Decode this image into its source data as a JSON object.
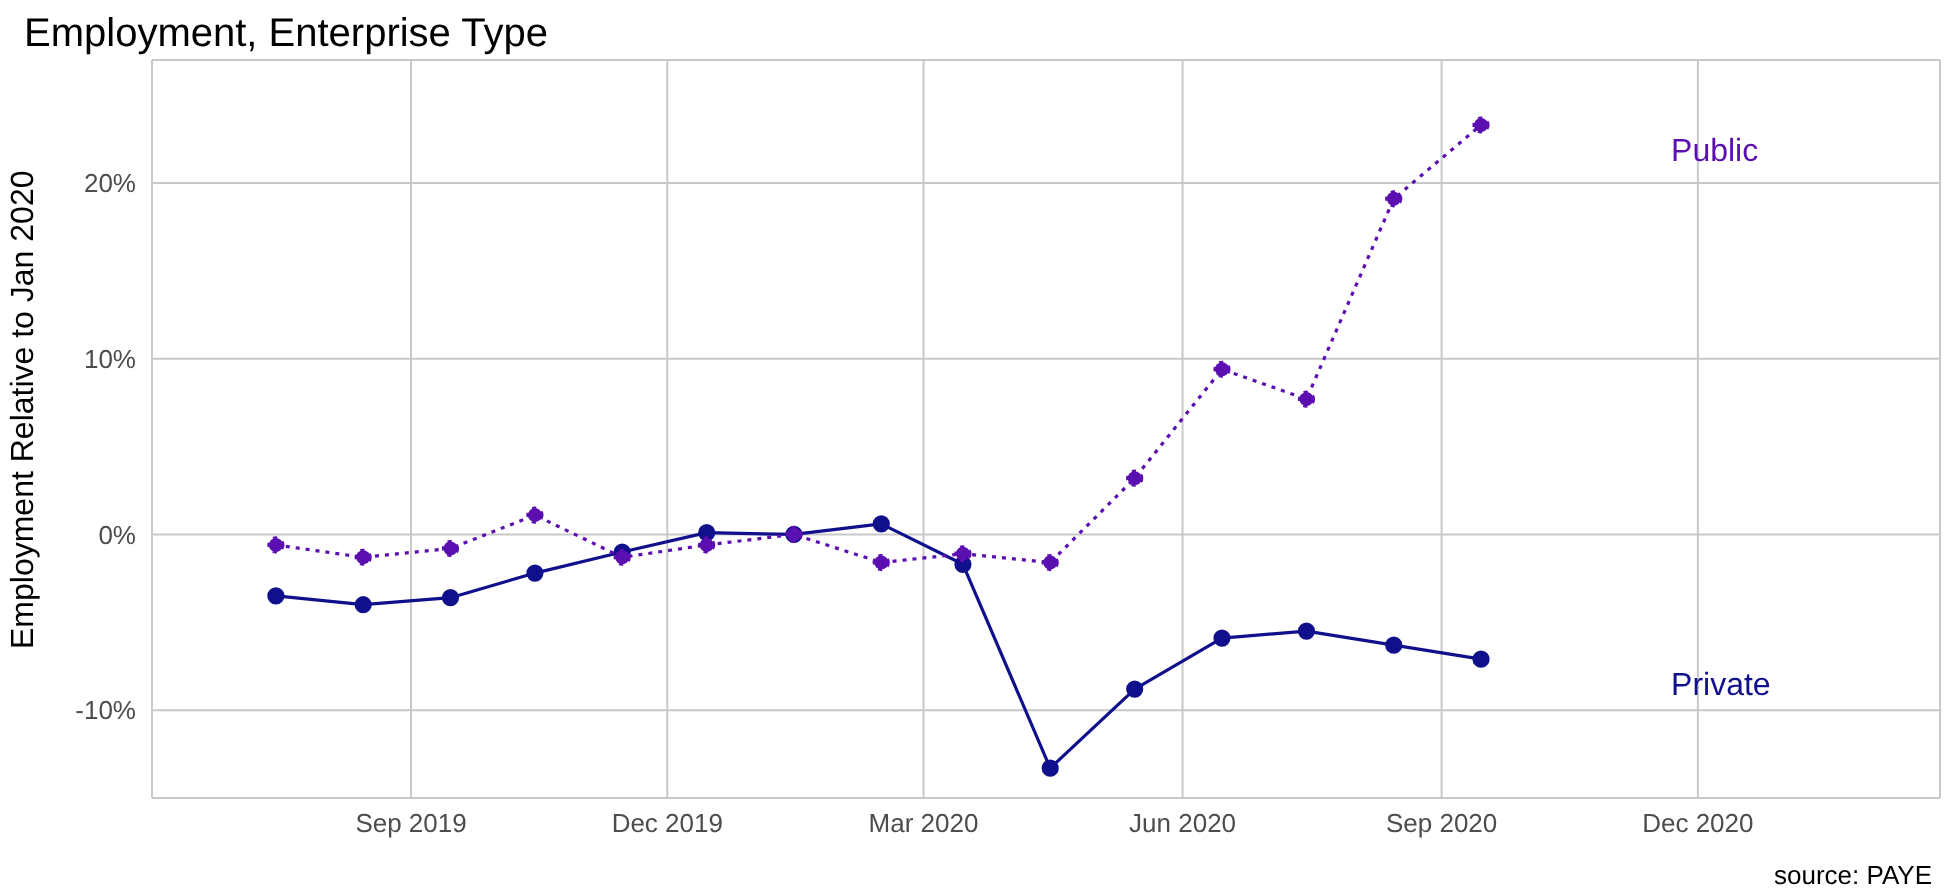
{
  "chart_data": {
    "type": "line",
    "title": "Employment, Enterprise Type",
    "ylabel": "Employment Relative to Jan 2020",
    "annotations": [
      "source: PAYE"
    ],
    "x": [
      "2019-07-15",
      "2019-08-15",
      "2019-09-15",
      "2019-10-15",
      "2019-11-15",
      "2019-12-15",
      "2020-01-15",
      "2020-02-15",
      "2020-03-15",
      "2020-04-15",
      "2020-05-15",
      "2020-06-15",
      "2020-07-15",
      "2020-08-15",
      "2020-09-15"
    ],
    "series": [
      {
        "name": "Public",
        "color": "#5b0fb0",
        "line_style": "dotted",
        "values": [
          -0.6,
          -1.3,
          -0.8,
          1.1,
          -1.3,
          -0.6,
          0,
          -1.6,
          -1.1,
          -1.6,
          3.2,
          9.4,
          7.7,
          19.1,
          23.3
        ]
      },
      {
        "name": "Private",
        "color": "#10108c",
        "line_style": "solid",
        "values": [
          -3.5,
          -4.0,
          -3.6,
          -2.2,
          -1.0,
          0.1,
          0.0,
          0.6,
          -1.7,
          -13.3,
          -8.8,
          -5.9,
          -5.5,
          -6.3,
          -7.1
        ]
      }
    ],
    "xlim": [
      "2019-06-01",
      "2021-02-25"
    ],
    "xticks": [
      {
        "value": "2019-09-01",
        "label": "Sep 2019"
      },
      {
        "value": "2019-12-01",
        "label": "Dec 2019"
      },
      {
        "value": "2020-03-01",
        "label": "Mar 2020"
      },
      {
        "value": "2020-06-01",
        "label": "Jun 2020"
      },
      {
        "value": "2020-09-01",
        "label": "Sep 2020"
      },
      {
        "value": "2020-12-01",
        "label": "Dec 2020"
      }
    ],
    "ylim": [
      -15,
      27
    ],
    "yticks": [
      {
        "value": -10,
        "label": "-10%"
      },
      {
        "value": 0,
        "label": "0%"
      },
      {
        "value": 10,
        "label": "10%"
      },
      {
        "value": 20,
        "label": "20%"
      }
    ],
    "grid": true,
    "legend": false,
    "marker": "circle"
  }
}
